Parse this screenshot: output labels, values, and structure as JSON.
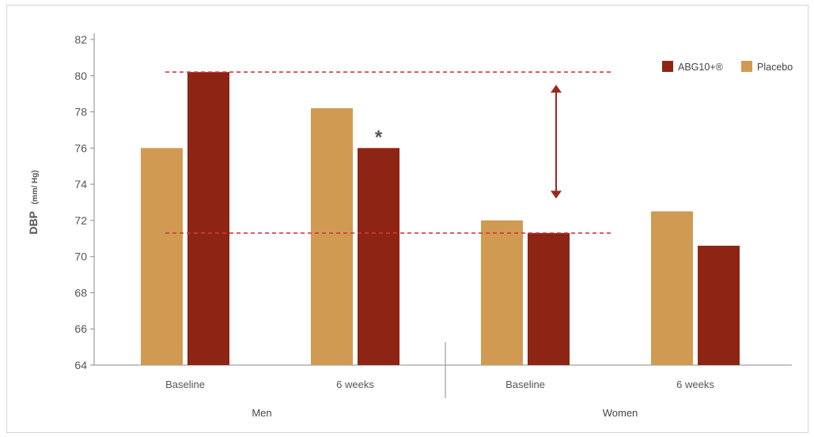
{
  "colors": {
    "abg": "#8e2413",
    "placebo": "#d09a52",
    "dashed": "#d9343f",
    "arrow": "#9a2a1c",
    "axis": "#8a8a8a",
    "text": "#555555"
  },
  "chart_data": {
    "type": "bar",
    "ylabel": "DBP",
    "ylabel_unit": "(mm/ Hg)",
    "ylim": [
      64,
      82
    ],
    "yticks": [
      64,
      66,
      68,
      70,
      72,
      74,
      76,
      78,
      80,
      82
    ],
    "groups": [
      {
        "label": "Men",
        "categories": [
          "Baseline",
          "6 weeks"
        ]
      },
      {
        "label": "Women",
        "categories": [
          "Baseline",
          "6 weeks"
        ]
      }
    ],
    "categories": [
      "Baseline",
      "6 weeks",
      "Baseline",
      "6 weeks"
    ],
    "series": [
      {
        "name": "Placebo",
        "color": "#d09a52",
        "values": [
          76.0,
          78.2,
          72.0,
          72.5
        ]
      },
      {
        "name": "ABG10+®",
        "color": "#8e2413",
        "values": [
          80.2,
          76.0,
          71.3,
          70.6
        ]
      }
    ],
    "legend": {
      "position": "top-right",
      "order": [
        "ABG10+®",
        "Placebo"
      ]
    },
    "reference_lines": [
      80.2,
      71.3
    ],
    "annotations": [
      {
        "text": "*",
        "category_index": 1,
        "series": "ABG10+®"
      }
    ],
    "arrow": {
      "from": 79.5,
      "to": 73.2
    },
    "grid": false
  }
}
